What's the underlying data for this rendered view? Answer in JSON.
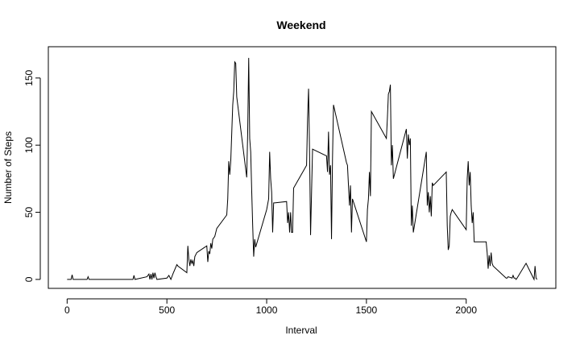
{
  "chart_data": {
    "type": "line",
    "title": "Weekend",
    "x_label": "Interval",
    "y_label": "Number of Steps",
    "color": "#000000",
    "x": [
      0,
      20,
      25,
      30,
      100,
      105,
      110,
      200,
      330,
      335,
      340,
      400,
      410,
      415,
      420,
      425,
      430,
      435,
      440,
      445,
      450,
      500,
      510,
      520,
      530,
      550,
      555,
      600,
      605,
      610,
      615,
      620,
      625,
      630,
      635,
      640,
      650,
      700,
      705,
      710,
      715,
      720,
      725,
      730,
      740,
      750,
      800,
      805,
      810,
      815,
      820,
      830,
      835,
      840,
      845,
      850,
      900,
      905,
      910,
      915,
      920,
      925,
      930,
      935,
      940,
      945,
      1000,
      1010,
      1015,
      1020,
      1025,
      1030,
      1035,
      1040,
      1100,
      1105,
      1110,
      1115,
      1120,
      1125,
      1130,
      1135,
      1200,
      1205,
      1210,
      1215,
      1220,
      1225,
      1230,
      1300,
      1305,
      1310,
      1315,
      1320,
      1325,
      1330,
      1335,
      1400,
      1405,
      1410,
      1415,
      1420,
      1425,
      1430,
      1500,
      1505,
      1510,
      1515,
      1520,
      1525,
      1600,
      1605,
      1610,
      1615,
      1620,
      1625,
      1630,
      1635,
      1700,
      1705,
      1710,
      1715,
      1720,
      1725,
      1730,
      1735,
      1800,
      1805,
      1810,
      1815,
      1820,
      1825,
      1830,
      1835,
      1900,
      1905,
      1910,
      1915,
      1920,
      1925,
      1930,
      2000,
      2005,
      2010,
      2015,
      2020,
      2025,
      2030,
      2035,
      2040,
      2100,
      2105,
      2110,
      2115,
      2120,
      2125,
      2130,
      2135,
      2200,
      2205,
      2210,
      2230,
      2235,
      2240,
      2245,
      2250,
      2255,
      2300,
      2340,
      2345,
      2350,
      2355
    ],
    "values": [
      0,
      0,
      3.5,
      0,
      0,
      2,
      0,
      0,
      0,
      3,
      0,
      2,
      4,
      0,
      4,
      0,
      5,
      1,
      5,
      2,
      0,
      1,
      3,
      0,
      4,
      11,
      10,
      5,
      25,
      15,
      10,
      15,
      12,
      14,
      10,
      17,
      20,
      25,
      13,
      21,
      19,
      27,
      23,
      30,
      32,
      38,
      48,
      60,
      88,
      78,
      88,
      130,
      140,
      162,
      161,
      136,
      76,
      110,
      165,
      105,
      95,
      66,
      40,
      17,
      30,
      24,
      52,
      60,
      95,
      75,
      65,
      35,
      57,
      57,
      58,
      42,
      50,
      35,
      50,
      35,
      35,
      68,
      85,
      120,
      142,
      95,
      33,
      65,
      97,
      92,
      80,
      110,
      78,
      85,
      30,
      90,
      130,
      87,
      85,
      70,
      55,
      70,
      35,
      60,
      28,
      52,
      60,
      80,
      62,
      125,
      105,
      120,
      138,
      140,
      145,
      85,
      100,
      75,
      112,
      90,
      108,
      100,
      105,
      40,
      55,
      35,
      95,
      55,
      65,
      50,
      62,
      47,
      72,
      70,
      80,
      40,
      22,
      25,
      47,
      50,
      52,
      37,
      75,
      88,
      70,
      80,
      55,
      42,
      50,
      28,
      28,
      20,
      8,
      18,
      10,
      20,
      12,
      10,
      1,
      1,
      2,
      1,
      3,
      1,
      1,
      0,
      1,
      12,
      0,
      10,
      1,
      0
    ],
    "xlim": [
      -94.2,
      2449.2
    ],
    "ylim": [
      -6.66,
      173.3
    ],
    "xticks": [
      0,
      500,
      1000,
      1500,
      2000
    ],
    "yticks": [
      0,
      50,
      100,
      150
    ]
  }
}
